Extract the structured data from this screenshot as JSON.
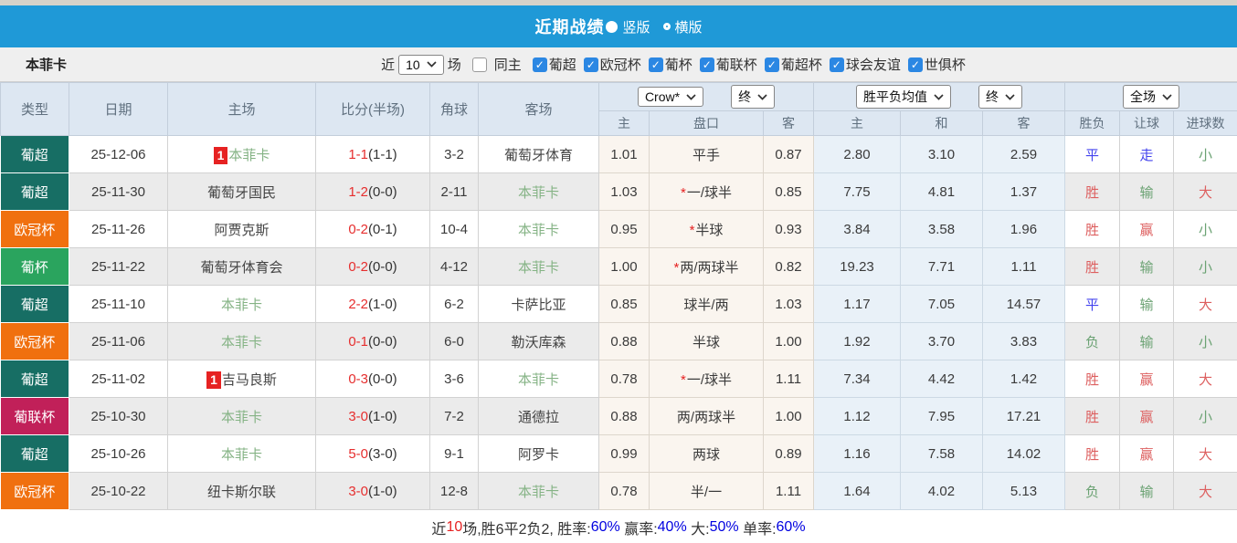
{
  "titlebar": {
    "title": "近期战绩",
    "radio_vertical_label": "竖版",
    "radio_horizontal_label": "横版"
  },
  "filter": {
    "team": "本菲卡",
    "recent_label": "近",
    "recent_value": "10",
    "matches_label": "场",
    "same_home_label": "同主",
    "leagues": [
      "葡超",
      "欧冠杯",
      "葡杯",
      "葡联杯",
      "葡超杯",
      "球会友谊",
      "世俱杯"
    ]
  },
  "table": {
    "selects": {
      "asia_company": "Crow*",
      "asia_time": "终",
      "europe_company": "胜平负均值",
      "europe_time": "终",
      "scope": "全场"
    },
    "columns": {
      "type": "类型",
      "date": "日期",
      "home": "主场",
      "score": "比分(半场)",
      "corner": "角球",
      "away": "客场",
      "ah_home": "主",
      "ah_line": "盘口",
      "ah_away": "客",
      "eu_home": "主",
      "eu_draw": "和",
      "eu_away": "客",
      "res_wdl": "胜负",
      "res_ah": "让球",
      "res_ou": "进球数"
    },
    "rows": [
      {
        "type": "葡超",
        "type_color": "teal",
        "date": "25-12-06",
        "home_rank": "1",
        "home": "本菲卡",
        "home_green": true,
        "score": "1-1",
        "half": "(1-1)",
        "corner": "3-2",
        "away": "葡萄牙体育",
        "away_green": false,
        "ah_home": "1.01",
        "ah_star": false,
        "ah_line": "平手",
        "ah_away": "0.87",
        "eu_home": "2.80",
        "eu_draw": "3.10",
        "eu_away": "2.59",
        "res_wdl": "平",
        "res_wdl_c": "blue",
        "res_ah": "走",
        "res_ah_c": "blue",
        "res_ou": "小",
        "res_ou_c": "green"
      },
      {
        "type": "葡超",
        "type_color": "teal",
        "date": "25-11-30",
        "home_rank": "",
        "home": "葡萄牙国民",
        "home_green": false,
        "score": "1-2",
        "half": "(0-0)",
        "corner": "2-11",
        "away": "本菲卡",
        "away_green": true,
        "ah_home": "1.03",
        "ah_star": true,
        "ah_line": "一/球半",
        "ah_away": "0.85",
        "eu_home": "7.75",
        "eu_draw": "4.81",
        "eu_away": "1.37",
        "res_wdl": "胜",
        "res_wdl_c": "red",
        "res_ah": "输",
        "res_ah_c": "green",
        "res_ou": "大",
        "res_ou_c": "red"
      },
      {
        "type": "欧冠杯",
        "type_color": "orange",
        "date": "25-11-26",
        "home_rank": "",
        "home": "阿贾克斯",
        "home_green": false,
        "score": "0-2",
        "half": "(0-1)",
        "corner": "10-4",
        "away": "本菲卡",
        "away_green": true,
        "ah_home": "0.95",
        "ah_star": true,
        "ah_line": "半球",
        "ah_away": "0.93",
        "eu_home": "3.84",
        "eu_draw": "3.58",
        "eu_away": "1.96",
        "res_wdl": "胜",
        "res_wdl_c": "red",
        "res_ah": "赢",
        "res_ah_c": "red",
        "res_ou": "小",
        "res_ou_c": "green"
      },
      {
        "type": "葡杯",
        "type_color": "green",
        "date": "25-11-22",
        "home_rank": "",
        "home": "葡萄牙体育会",
        "home_green": false,
        "score": "0-2",
        "half": "(0-0)",
        "corner": "4-12",
        "away": "本菲卡",
        "away_green": true,
        "ah_home": "1.00",
        "ah_star": true,
        "ah_line": "两/两球半",
        "ah_away": "0.82",
        "eu_home": "19.23",
        "eu_draw": "7.71",
        "eu_away": "1.11",
        "res_wdl": "胜",
        "res_wdl_c": "red",
        "res_ah": "输",
        "res_ah_c": "green",
        "res_ou": "小",
        "res_ou_c": "green"
      },
      {
        "type": "葡超",
        "type_color": "teal",
        "date": "25-11-10",
        "home_rank": "",
        "home": "本菲卡",
        "home_green": true,
        "score": "2-2",
        "half": "(1-0)",
        "corner": "6-2",
        "away": "卡萨比亚",
        "away_green": false,
        "ah_home": "0.85",
        "ah_star": false,
        "ah_line": "球半/两",
        "ah_away": "1.03",
        "eu_home": "1.17",
        "eu_draw": "7.05",
        "eu_away": "14.57",
        "res_wdl": "平",
        "res_wdl_c": "blue",
        "res_ah": "输",
        "res_ah_c": "green",
        "res_ou": "大",
        "res_ou_c": "red"
      },
      {
        "type": "欧冠杯",
        "type_color": "orange",
        "date": "25-11-06",
        "home_rank": "",
        "home": "本菲卡",
        "home_green": true,
        "score": "0-1",
        "half": "(0-0)",
        "corner": "6-0",
        "away": "勒沃库森",
        "away_green": false,
        "ah_home": "0.88",
        "ah_star": false,
        "ah_line": "半球",
        "ah_away": "1.00",
        "eu_home": "1.92",
        "eu_draw": "3.70",
        "eu_away": "3.83",
        "res_wdl": "负",
        "res_wdl_c": "green",
        "res_ah": "输",
        "res_ah_c": "green",
        "res_ou": "小",
        "res_ou_c": "green"
      },
      {
        "type": "葡超",
        "type_color": "teal",
        "date": "25-11-02",
        "home_rank": "1",
        "home": "吉马良斯",
        "home_green": false,
        "score": "0-3",
        "half": "(0-0)",
        "corner": "3-6",
        "away": "本菲卡",
        "away_green": true,
        "ah_home": "0.78",
        "ah_star": true,
        "ah_line": "一/球半",
        "ah_away": "1.11",
        "eu_home": "7.34",
        "eu_draw": "4.42",
        "eu_away": "1.42",
        "res_wdl": "胜",
        "res_wdl_c": "red",
        "res_ah": "赢",
        "res_ah_c": "red",
        "res_ou": "大",
        "res_ou_c": "red"
      },
      {
        "type": "葡联杯",
        "type_color": "crimson",
        "date": "25-10-30",
        "home_rank": "",
        "home": "本菲卡",
        "home_green": true,
        "score": "3-0",
        "half": "(1-0)",
        "corner": "7-2",
        "away": "通德拉",
        "away_green": false,
        "ah_home": "0.88",
        "ah_star": false,
        "ah_line": "两/两球半",
        "ah_away": "1.00",
        "eu_home": "1.12",
        "eu_draw": "7.95",
        "eu_away": "17.21",
        "res_wdl": "胜",
        "res_wdl_c": "red",
        "res_ah": "赢",
        "res_ah_c": "red",
        "res_ou": "小",
        "res_ou_c": "green"
      },
      {
        "type": "葡超",
        "type_color": "teal",
        "date": "25-10-26",
        "home_rank": "",
        "home": "本菲卡",
        "home_green": true,
        "score": "5-0",
        "half": "(3-0)",
        "corner": "9-1",
        "away": "阿罗卡",
        "away_green": false,
        "ah_home": "0.99",
        "ah_star": false,
        "ah_line": "两球",
        "ah_away": "0.89",
        "eu_home": "1.16",
        "eu_draw": "7.58",
        "eu_away": "14.02",
        "res_wdl": "胜",
        "res_wdl_c": "red",
        "res_ah": "赢",
        "res_ah_c": "red",
        "res_ou": "大",
        "res_ou_c": "red"
      },
      {
        "type": "欧冠杯",
        "type_color": "orange",
        "date": "25-10-22",
        "home_rank": "",
        "home": "纽卡斯尔联",
        "home_green": false,
        "score": "3-0",
        "half": "(1-0)",
        "corner": "12-8",
        "away": "本菲卡",
        "away_green": true,
        "ah_home": "0.78",
        "ah_star": false,
        "ah_line": "半/一",
        "ah_away": "1.11",
        "eu_home": "1.64",
        "eu_draw": "4.02",
        "eu_away": "5.13",
        "res_wdl": "负",
        "res_wdl_c": "green",
        "res_ah": "输",
        "res_ah_c": "green",
        "res_ou": "大",
        "res_ou_c": "red"
      }
    ]
  },
  "footer": {
    "segments": [
      {
        "text": "近",
        "color": "dark"
      },
      {
        "text": "10",
        "color": "red"
      },
      {
        "text": "场,胜6平2负2, 胜率:",
        "color": "dark"
      },
      {
        "text": "60%",
        "color": "blue"
      },
      {
        "text": " 赢率:",
        "color": "dark"
      },
      {
        "text": "40%",
        "color": "blue"
      },
      {
        "text": " 大:",
        "color": "dark"
      },
      {
        "text": "50%",
        "color": "blue"
      },
      {
        "text": " 单率:",
        "color": "dark"
      },
      {
        "text": "60%",
        "color": "blue"
      }
    ]
  },
  "colors": {
    "titlebar_blue": "#1f99d7",
    "badge_teal": "#176e64",
    "badge_orange": "#f0700f",
    "badge_green": "#2aa45e",
    "badge_crimson": "#c12059",
    "checkbox_blue": "#2b87e3",
    "score_red": "#e62e2e",
    "team_green": "#85b385",
    "result_red": "#dd5f5f",
    "result_green": "#6ba273",
    "result_blue": "#4343ee",
    "odds_cream_bg": "#faf5ef",
    "odds_blue_bg": "#e9f1f8",
    "header_bg": "#dde7f2",
    "alt_row_bg": "#ebebeb"
  }
}
